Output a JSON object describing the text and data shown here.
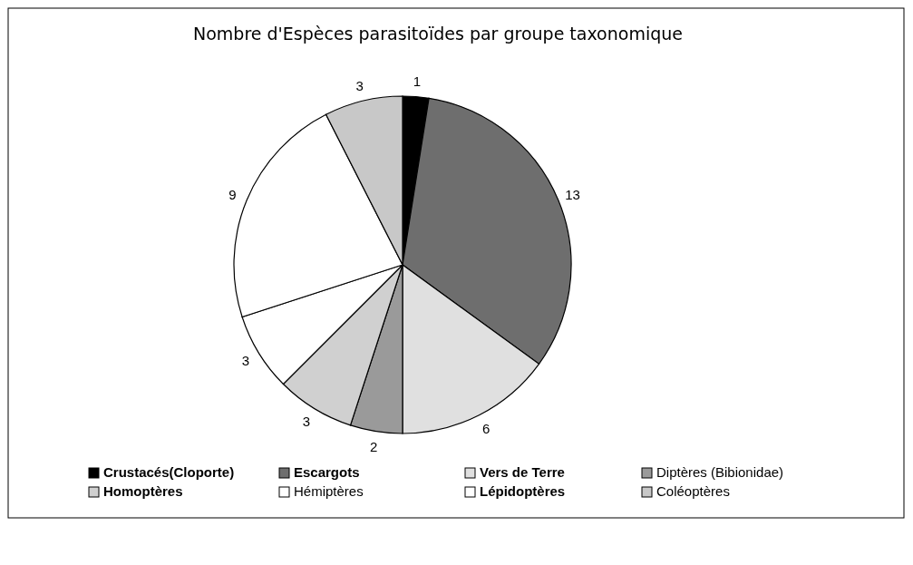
{
  "chart_data": {
    "type": "pie",
    "title": "Nombre d'Espèces parasitoïdes par groupe taxonomique",
    "categories": [
      "Crustacés(Cloporte)",
      "Escargots",
      "Vers de Terre",
      "Diptères (Bibionidae)",
      "Homoptères",
      "Hémiptères",
      "Lépidoptères",
      "Coléoptères"
    ],
    "values": [
      1,
      13,
      6,
      2,
      3,
      3,
      9,
      3
    ],
    "colors": [
      "#000000",
      "#6e6e6e",
      "#e0e0e0",
      "#9a9a9a",
      "#d0d0d0",
      "#ffffff",
      "#ffffff",
      "#c8c8c8"
    ],
    "data_labels": true,
    "legend": "bottom"
  }
}
